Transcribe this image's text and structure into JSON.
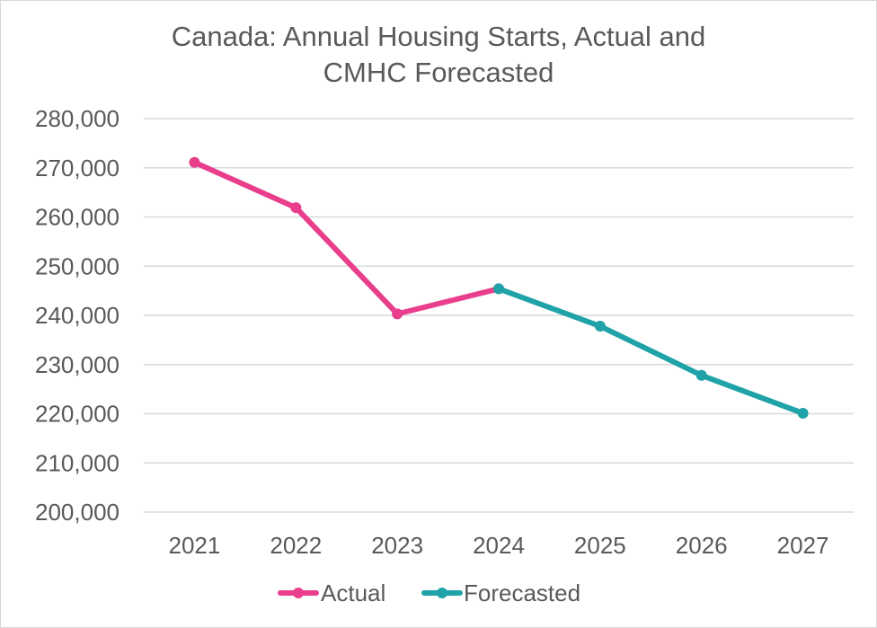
{
  "chart_data": {
    "type": "line",
    "title_lines": [
      "Canada: Annual Housing Starts, Actual and",
      "CMHC Forecasted"
    ],
    "categories": [
      "2021",
      "2022",
      "2023",
      "2024",
      "2025",
      "2026",
      "2027"
    ],
    "series": [
      {
        "name": "Actual",
        "color": "#e83e8c",
        "values": [
          271100,
          261900,
          240300,
          245400,
          null,
          null,
          null
        ]
      },
      {
        "name": "Forecasted",
        "color": "#1fa2a8",
        "values": [
          null,
          null,
          null,
          245400,
          237800,
          227800,
          220100
        ]
      }
    ],
    "ylim": [
      200000,
      280000
    ],
    "yticks": [
      200000,
      210000,
      220000,
      230000,
      240000,
      250000,
      260000,
      270000,
      280000
    ],
    "ytick_labels": [
      "200,000",
      "210,000",
      "220,000",
      "230,000",
      "240,000",
      "250,000",
      "260,000",
      "270,000",
      "280,000"
    ],
    "grid": true,
    "legend_position": "bottom"
  }
}
